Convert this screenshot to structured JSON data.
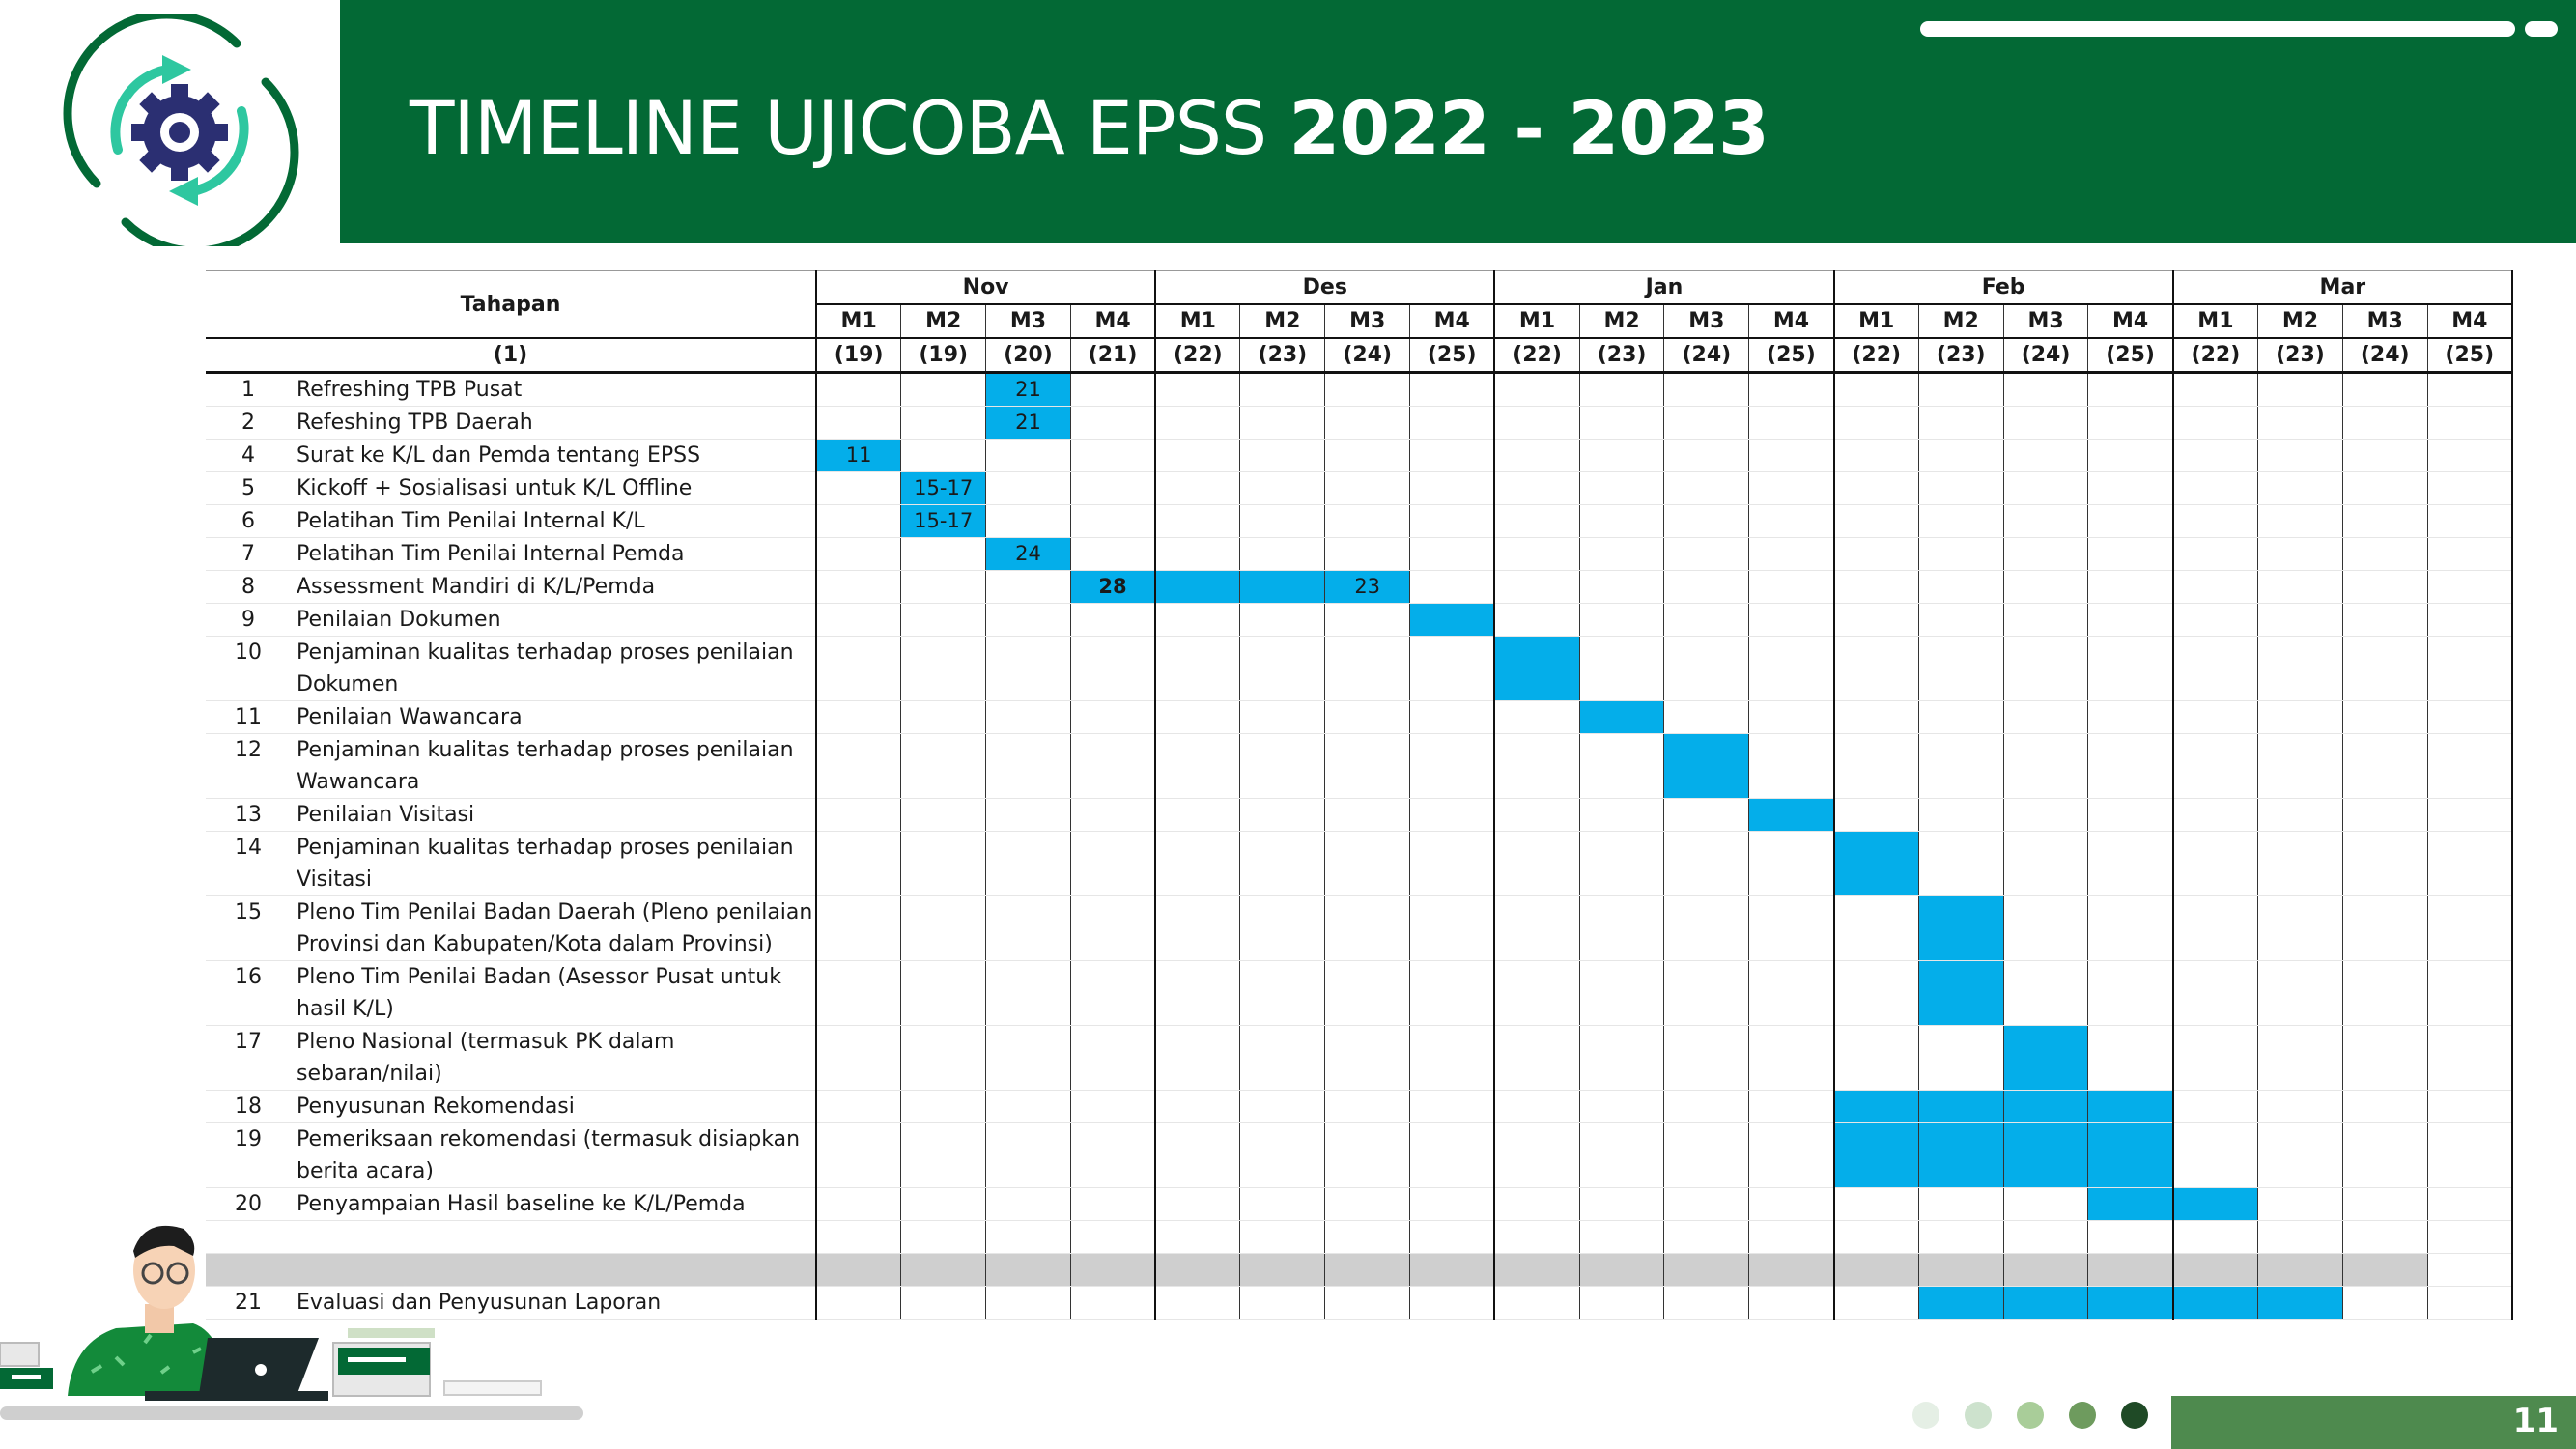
{
  "header": {
    "title_light": "TIMELINE UJICOBA EPSS ",
    "title_bold": "2022 - 2023"
  },
  "table": {
    "col_title": "Tahapan",
    "col_number": "(1)",
    "months": [
      "Nov",
      "Des",
      "Jan",
      "Feb",
      "Mar"
    ],
    "weeks": [
      "M1",
      "M2",
      "M3",
      "M4",
      "M1",
      "M2",
      "M3",
      "M4",
      "M1",
      "M2",
      "M3",
      "M4",
      "M1",
      "M2",
      "M3",
      "M4",
      "M1",
      "M2",
      "M3",
      "M4"
    ],
    "week_numbers": [
      "(19)",
      "(19)",
      "(20)",
      "(21)",
      "(22)",
      "(23)",
      "(24)",
      "(25)",
      "(22)",
      "(23)",
      "(24)",
      "(25)",
      "(22)",
      "(23)",
      "(24)",
      "(25)",
      "(22)",
      "(23)",
      "(24)",
      "(25)"
    ],
    "rows": [
      {
        "no": "1",
        "name": "Refreshing TPB Pusat"
      },
      {
        "no": "2",
        "name": "Refeshing TPB Daerah"
      },
      {
        "no": "4",
        "name": "Surat ke K/L dan Pemda tentang EPSS"
      },
      {
        "no": "5",
        "name": "Kickoff + Sosialisasi untuk K/L Offline"
      },
      {
        "no": "6",
        "name": "Pelatihan Tim Penilai Internal K/L"
      },
      {
        "no": "7",
        "name": "Pelatihan Tim Penilai Internal Pemda"
      },
      {
        "no": "8",
        "name": "Assessment Mandiri di K/L/Pemda"
      },
      {
        "no": "9",
        "name": "Penilaian Dokumen"
      },
      {
        "no": "10",
        "name": "Penjaminan kualitas terhadap proses penilaian Dokumen"
      },
      {
        "no": "11",
        "name": "Penilaian Wawancara"
      },
      {
        "no": "12",
        "name": "Penjaminan kualitas terhadap proses penilaian Wawancara"
      },
      {
        "no": "13",
        "name": "Penilaian Visitasi"
      },
      {
        "no": "14",
        "name": "Penjaminan kualitas terhadap proses penilaian Visitasi"
      },
      {
        "no": "15",
        "name": "Pleno Tim Penilai Badan Daerah (Pleno penilaian Provinsi dan Kabupaten/Kota dalam Provinsi)"
      },
      {
        "no": "16",
        "name": "Pleno Tim Penilai Badan (Asessor Pusat untuk hasil K/L)"
      },
      {
        "no": "17",
        "name": "Pleno Nasional (termasuk PK dalam sebaran/nilai)"
      },
      {
        "no": "18",
        "name": "Penyusunan Rekomendasi"
      },
      {
        "no": "19",
        "name": "Pemeriksaan rekomendasi (termasuk disiapkan berita acara)"
      },
      {
        "no": "20",
        "name": "Penyampaian Hasil baseline ke K/L/Pemda"
      },
      {
        "no": "",
        "name": ""
      },
      {
        "no": "",
        "name": ""
      },
      {
        "no": "21",
        "name": "Evaluasi dan Penyusunan Laporan"
      }
    ],
    "bar_labels": {
      "r0": "21",
      "r1": "21",
      "r2": "11",
      "r3": "15-17",
      "r4": "15-17",
      "r5": "24",
      "r6_start": "28",
      "r6_end": "23"
    }
  },
  "footer": {
    "page_number": "11",
    "dot_colors": [
      "#e5efe5",
      "#cde2cd",
      "#a9cd99",
      "#6e9b5e",
      "#1f4a26"
    ]
  },
  "colors": {
    "header_green": "#036935",
    "bar_blue": "#04aeea",
    "page_band": "#4e8a4e"
  }
}
